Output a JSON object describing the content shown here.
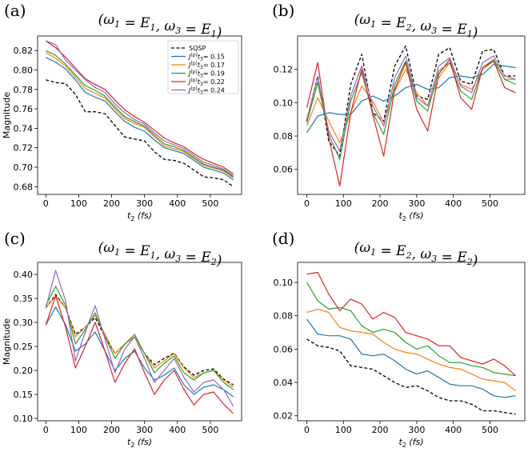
{
  "chart_data": [
    {
      "type": "line",
      "panel_label": "(a)",
      "title": "(ω1 = E1, ω3 = E1)",
      "xlabel": "t2 (fs)",
      "ylabel": "Magnitude",
      "xlim": [
        -25,
        595
      ],
      "ylim": [
        0.672,
        0.835
      ],
      "xticks": [
        0,
        100,
        200,
        300,
        400,
        500
      ],
      "yticks": [
        0.68,
        0.7,
        0.72,
        0.74,
        0.76,
        0.78,
        0.8,
        0.82
      ],
      "ytick_labels": [
        "0.68",
        "0.70",
        "0.72",
        "0.74",
        "0.76",
        "0.78",
        "0.80",
        "0.82"
      ],
      "x": [
        0,
        30,
        60,
        90,
        120,
        150,
        180,
        210,
        240,
        270,
        300,
        330,
        360,
        390,
        420,
        450,
        480,
        510,
        540,
        570
      ],
      "legend": {
        "show": true,
        "location": "top-right",
        "entries": [
          "SQSP",
          "J(p) t3 = 0.15",
          "J(p) t3 = 0.17",
          "J(p) t3 = 0.19",
          "J(p) t3 = 0.22",
          "J(p) t3 = 0.24"
        ]
      },
      "series": [
        {
          "name": "SQSP",
          "color": "#000000",
          "dashed": true,
          "values": [
            0.79,
            0.787,
            0.786,
            0.775,
            0.757,
            0.757,
            0.755,
            0.743,
            0.731,
            0.729,
            0.727,
            0.716,
            0.708,
            0.707,
            0.704,
            0.697,
            0.69,
            0.689,
            0.687,
            0.68
          ]
        },
        {
          "name": "0.15",
          "color": "#1f77b4",
          "values": [
            0.813,
            0.808,
            0.801,
            0.79,
            0.777,
            0.772,
            0.768,
            0.757,
            0.747,
            0.741,
            0.737,
            0.728,
            0.72,
            0.717,
            0.714,
            0.707,
            0.7,
            0.697,
            0.694,
            0.687
          ]
        },
        {
          "name": "0.17",
          "color": "#ff7f0e",
          "values": [
            0.818,
            0.812,
            0.804,
            0.793,
            0.781,
            0.776,
            0.771,
            0.76,
            0.75,
            0.745,
            0.741,
            0.731,
            0.722,
            0.719,
            0.716,
            0.709,
            0.702,
            0.699,
            0.696,
            0.689
          ]
        },
        {
          "name": "0.19",
          "color": "#2ca02c",
          "values": [
            0.82,
            0.815,
            0.806,
            0.795,
            0.784,
            0.779,
            0.773,
            0.762,
            0.752,
            0.747,
            0.742,
            0.733,
            0.724,
            0.721,
            0.717,
            0.71,
            0.703,
            0.7,
            0.697,
            0.69
          ]
        },
        {
          "name": "0.22",
          "color": "#d62728",
          "values": [
            0.83,
            0.823,
            0.813,
            0.802,
            0.791,
            0.785,
            0.78,
            0.769,
            0.759,
            0.752,
            0.746,
            0.738,
            0.73,
            0.725,
            0.721,
            0.714,
            0.708,
            0.704,
            0.7,
            0.693
          ]
        },
        {
          "name": "0.24",
          "color": "#9467bd",
          "values": [
            0.83,
            0.826,
            0.81,
            0.8,
            0.79,
            0.782,
            0.777,
            0.765,
            0.756,
            0.749,
            0.744,
            0.735,
            0.727,
            0.723,
            0.719,
            0.712,
            0.705,
            0.702,
            0.698,
            0.691
          ]
        }
      ]
    },
    {
      "type": "line",
      "panel_label": "(b)",
      "title": "(ω1 = E2, ω3 = E1)",
      "xlabel": "t2 (fs)",
      "ylabel": "",
      "xlim": [
        -25,
        595
      ],
      "ylim": [
        0.045,
        0.14
      ],
      "xticks": [
        0,
        100,
        200,
        300,
        400,
        500
      ],
      "yticks": [
        0.06,
        0.08,
        0.1,
        0.12
      ],
      "ytick_labels": [
        "0.06",
        "0.08",
        "0.10",
        "0.12"
      ],
      "x": [
        0,
        30,
        60,
        90,
        120,
        150,
        180,
        210,
        240,
        270,
        300,
        330,
        360,
        390,
        420,
        450,
        480,
        510,
        540,
        570
      ],
      "legend": {
        "show": false
      },
      "series": [
        {
          "name": "SQSP",
          "color": "#000000",
          "dashed": true,
          "values": [
            0.089,
            0.116,
            0.077,
            0.068,
            0.111,
            0.129,
            0.094,
            0.089,
            0.122,
            0.134,
            0.104,
            0.102,
            0.129,
            0.133,
            0.113,
            0.111,
            0.131,
            0.132,
            0.116,
            0.116
          ]
        },
        {
          "name": "0.15",
          "color": "#1f77b4",
          "values": [
            0.082,
            0.092,
            0.094,
            0.093,
            0.093,
            0.101,
            0.104,
            0.101,
            0.104,
            0.109,
            0.111,
            0.108,
            0.109,
            0.115,
            0.116,
            0.115,
            0.117,
            0.123,
            0.122,
            0.121
          ]
        },
        {
          "name": "0.17",
          "color": "#ff7f0e",
          "values": [
            0.086,
            0.103,
            0.089,
            0.076,
            0.094,
            0.11,
            0.101,
            0.088,
            0.107,
            0.12,
            0.106,
            0.098,
            0.115,
            0.124,
            0.111,
            0.108,
            0.12,
            0.125,
            0.114,
            0.114
          ]
        },
        {
          "name": "0.19",
          "color": "#2ca02c",
          "values": [
            0.088,
            0.112,
            0.081,
            0.066,
            0.101,
            0.118,
            0.094,
            0.081,
            0.111,
            0.125,
            0.101,
            0.095,
            0.119,
            0.124,
            0.107,
            0.102,
            0.121,
            0.126,
            0.114,
            0.111
          ]
        },
        {
          "name": "0.22",
          "color": "#d62728",
          "values": [
            0.097,
            0.124,
            0.079,
            0.05,
            0.094,
            0.12,
            0.093,
            0.068,
            0.108,
            0.124,
            0.096,
            0.083,
            0.117,
            0.126,
            0.103,
            0.096,
            0.121,
            0.125,
            0.109,
            0.106
          ]
        },
        {
          "name": "0.24",
          "color": "#9467bd",
          "values": [
            0.09,
            0.115,
            0.083,
            0.071,
            0.104,
            0.122,
            0.098,
            0.086,
            0.115,
            0.128,
            0.103,
            0.098,
            0.122,
            0.127,
            0.11,
            0.106,
            0.124,
            0.128,
            0.116,
            0.114
          ]
        }
      ]
    },
    {
      "type": "line",
      "panel_label": "(c)",
      "title": "(ω1 = E1, ω3 = E2)",
      "xlabel": "t2 (fs)",
      "ylabel": "Magnitude",
      "xlim": [
        -25,
        595
      ],
      "ylim": [
        0.095,
        0.425
      ],
      "xticks": [
        0,
        100,
        200,
        300,
        400,
        500
      ],
      "yticks": [
        0.1,
        0.15,
        0.2,
        0.25,
        0.3,
        0.35,
        0.4
      ],
      "ytick_labels": [
        "0.10",
        "0.15",
        "0.20",
        "0.25",
        "0.30",
        "0.35",
        "0.40"
      ],
      "x": [
        0,
        30,
        60,
        90,
        120,
        150,
        180,
        210,
        240,
        270,
        300,
        330,
        360,
        390,
        420,
        450,
        480,
        510,
        540,
        570
      ],
      "legend": {
        "show": false
      },
      "series": [
        {
          "name": "SQSP",
          "color": "#000000",
          "dashed": true,
          "values": [
            0.33,
            0.358,
            0.33,
            0.275,
            0.29,
            0.31,
            0.27,
            0.235,
            0.255,
            0.27,
            0.235,
            0.212,
            0.225,
            0.236,
            0.207,
            0.19,
            0.2,
            0.203,
            0.182,
            0.17
          ]
        },
        {
          "name": "0.15",
          "color": "#1f77b4",
          "values": [
            0.295,
            0.332,
            0.295,
            0.24,
            0.255,
            0.28,
            0.24,
            0.2,
            0.225,
            0.24,
            0.205,
            0.18,
            0.19,
            0.205,
            0.17,
            0.15,
            0.165,
            0.17,
            0.16,
            0.145
          ]
        },
        {
          "name": "0.17",
          "color": "#ff7f0e",
          "values": [
            0.33,
            0.355,
            0.33,
            0.27,
            0.29,
            0.315,
            0.275,
            0.235,
            0.255,
            0.27,
            0.235,
            0.205,
            0.22,
            0.235,
            0.205,
            0.185,
            0.195,
            0.2,
            0.18,
            0.165
          ]
        },
        {
          "name": "0.19",
          "color": "#2ca02c",
          "values": [
            0.335,
            0.375,
            0.335,
            0.255,
            0.285,
            0.32,
            0.27,
            0.225,
            0.255,
            0.275,
            0.235,
            0.195,
            0.215,
            0.23,
            0.195,
            0.18,
            0.195,
            0.2,
            0.175,
            0.16
          ]
        },
        {
          "name": "0.22",
          "color": "#d62728",
          "values": [
            0.295,
            0.355,
            0.29,
            0.205,
            0.25,
            0.3,
            0.24,
            0.175,
            0.215,
            0.245,
            0.195,
            0.15,
            0.18,
            0.2,
            0.16,
            0.128,
            0.15,
            0.155,
            0.13,
            0.11
          ]
        },
        {
          "name": "0.24",
          "color": "#9467bd",
          "values": [
            0.33,
            0.408,
            0.345,
            0.22,
            0.28,
            0.335,
            0.265,
            0.195,
            0.245,
            0.27,
            0.225,
            0.175,
            0.2,
            0.225,
            0.185,
            0.155,
            0.175,
            0.18,
            0.16,
            0.125
          ]
        }
      ]
    },
    {
      "type": "line",
      "panel_label": "(d)",
      "title": "(ω1 = E2, ω3 = E2)",
      "xlabel": "t2 (fs)",
      "ylabel": "",
      "xlim": [
        -25,
        595
      ],
      "ylim": [
        0.017,
        0.112
      ],
      "xticks": [
        0,
        100,
        200,
        300,
        400,
        500
      ],
      "yticks": [
        0.02,
        0.04,
        0.06,
        0.08,
        0.1
      ],
      "ytick_labels": [
        "0.02",
        "0.04",
        "0.06",
        "0.08",
        "0.10"
      ],
      "x": [
        0,
        30,
        60,
        90,
        120,
        150,
        180,
        210,
        240,
        270,
        300,
        330,
        360,
        390,
        420,
        450,
        480,
        510,
        540,
        570
      ],
      "legend": {
        "show": false
      },
      "series": [
        {
          "name": "SQSP",
          "color": "#000000",
          "dashed": true,
          "values": [
            0.066,
            0.062,
            0.061,
            0.059,
            0.05,
            0.049,
            0.048,
            0.044,
            0.04,
            0.037,
            0.038,
            0.035,
            0.031,
            0.029,
            0.029,
            0.027,
            0.023,
            0.023,
            0.022,
            0.021
          ]
        },
        {
          "name": "0.15",
          "color": "#1f77b4",
          "values": [
            0.078,
            0.069,
            0.068,
            0.068,
            0.066,
            0.057,
            0.056,
            0.057,
            0.053,
            0.048,
            0.045,
            0.047,
            0.043,
            0.039,
            0.038,
            0.038,
            0.036,
            0.032,
            0.031,
            0.032
          ]
        },
        {
          "name": "0.17",
          "color": "#ff7f0e",
          "values": [
            0.082,
            0.084,
            0.082,
            0.073,
            0.071,
            0.07,
            0.069,
            0.064,
            0.06,
            0.058,
            0.057,
            0.054,
            0.051,
            0.049,
            0.048,
            0.045,
            0.042,
            0.041,
            0.04,
            0.035
          ]
        },
        {
          "name": "0.19",
          "color": "#2ca02c",
          "values": [
            0.1,
            0.089,
            0.084,
            0.085,
            0.083,
            0.074,
            0.07,
            0.072,
            0.07,
            0.064,
            0.06,
            0.062,
            0.056,
            0.052,
            0.052,
            0.05,
            0.049,
            0.046,
            0.045,
            0.044
          ]
        },
        {
          "name": "0.22",
          "color": "#d62728",
          "values": [
            0.105,
            0.106,
            0.093,
            0.083,
            0.09,
            0.087,
            0.078,
            0.082,
            0.079,
            0.07,
            0.068,
            0.066,
            0.062,
            0.062,
            0.055,
            0.053,
            0.051,
            0.054,
            0.05,
            0.044
          ]
        }
      ]
    }
  ]
}
